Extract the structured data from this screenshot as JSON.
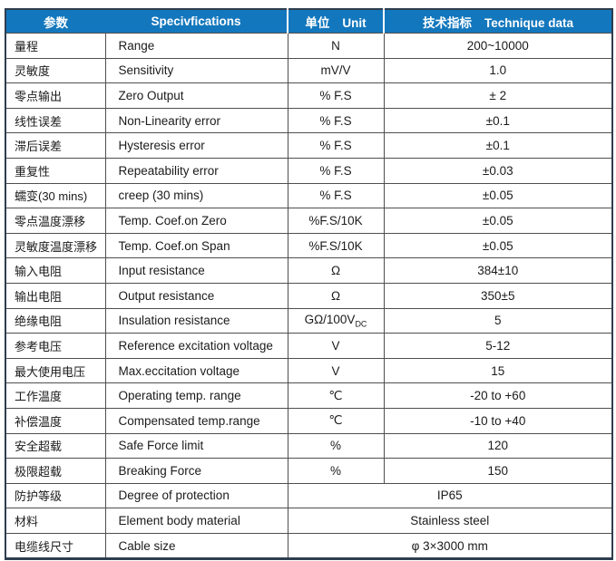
{
  "header": {
    "param": "参数",
    "spec": "Specivfications",
    "unit_zh": "单位",
    "unit_en": "Unit",
    "data_zh": "技术指标",
    "data_en": "Technique data"
  },
  "rows": [
    {
      "param": "量程",
      "spec": "Range",
      "unit": "N",
      "value": "200~10000"
    },
    {
      "param": "灵敏度",
      "spec": "Sensitivity",
      "unit": "mV/V",
      "value": "1.0"
    },
    {
      "param": "零点输出",
      "spec": "Zero Output",
      "unit": "% F.S",
      "value": "± 2"
    },
    {
      "param": "线性误差",
      "spec": "Non-Linearity error",
      "unit": "% F.S",
      "value": "±0.1"
    },
    {
      "param": "滞后误差",
      "spec": "Hysteresis error",
      "unit": "% F.S",
      "value": "±0.1"
    },
    {
      "param": "重复性",
      "spec": "Repeatability error",
      "unit": "% F.S",
      "value": "±0.03"
    },
    {
      "param": "蠕变(30 mins)",
      "spec": "creep (30 mins)",
      "unit": "% F.S",
      "value": "±0.05"
    },
    {
      "param": "零点温度漂移",
      "spec": "Temp. Coef.on Zero",
      "unit": "%F.S/10K",
      "value": "±0.05"
    },
    {
      "param": "灵敏度温度漂移",
      "spec": "Temp. Coef.on Span",
      "unit": "%F.S/10K",
      "value": "±0.05"
    },
    {
      "param": "输入电阻",
      "spec": "Input resistance",
      "unit": "Ω",
      "value": "384±10"
    },
    {
      "param": "输出电阻",
      "spec": "Output resistance",
      "unit": "Ω",
      "value": "350±5"
    },
    {
      "param": "绝缘电阻",
      "spec": "Insulation resistance",
      "unit": "GΩ/100V",
      "unit_sub": "DC",
      "value": "5"
    },
    {
      "param": "参考电压",
      "spec": "Reference excitation voltage",
      "unit": "V",
      "value": "5-12"
    },
    {
      "param": "最大使用电压",
      "spec": "Max.eccitation voltage",
      "unit": "V",
      "value": "15"
    },
    {
      "param": "工作温度",
      "spec": "Operating temp. range",
      "unit": "℃",
      "value": "-20 to +60"
    },
    {
      "param": "补偿温度",
      "spec": "Compensated temp.range",
      "unit": "℃",
      "value": "-10 to +40"
    },
    {
      "param": "安全超载",
      "spec": "Safe Force limit",
      "unit": "%",
      "value": "120"
    },
    {
      "param": "极限超载",
      "spec": "Breaking Force",
      "unit": "%",
      "value": "150"
    },
    {
      "param": "防护等级",
      "spec": "Degree of protection",
      "merged": true,
      "value": "IP65"
    },
    {
      "param": "材料",
      "spec": "Element body material",
      "merged": true,
      "value": "Stainless steel"
    },
    {
      "param": "电缆线尺寸",
      "spec": "Cable size",
      "merged": true,
      "value": "φ 3×3000 mm"
    }
  ],
  "colors": {
    "header_bg": "#1377BD",
    "header_text": "#FFFFFF",
    "border_outer": "#2E3D4E",
    "border_inner": "#4F4F4F",
    "body_text": "#1B1B1B"
  }
}
